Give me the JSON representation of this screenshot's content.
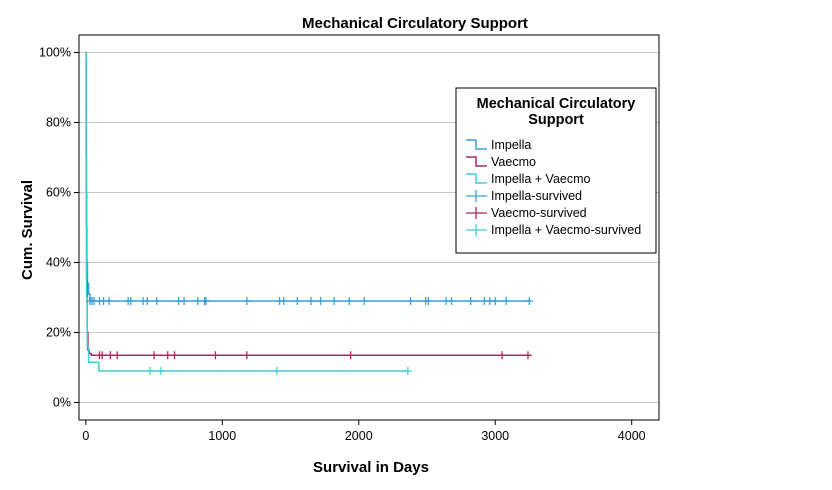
{
  "chart_data": {
    "type": "line",
    "subtype": "kaplan-meier",
    "title": "Mechanical Circulatory Support",
    "xlabel": "Survival in Days",
    "ylabel": "Cum. Survival",
    "xlim": [
      -50,
      4200
    ],
    "ylim": [
      -0.05,
      1.05
    ],
    "xticks": [
      0,
      1000,
      2000,
      3000,
      4000
    ],
    "xtick_labels": [
      "0",
      "1000",
      "2000",
      "3000",
      "4000"
    ],
    "yticks": [
      0,
      0.2,
      0.4,
      0.6,
      0.8,
      1.0
    ],
    "ytick_labels": [
      "0%",
      "20%",
      "40%",
      "60%",
      "80%",
      "100%"
    ],
    "grid": "horizontal",
    "legend_title": "Mechanical Circulatory Support",
    "legend_position": "right",
    "colors": {
      "impella": "#3a9fdd",
      "vaecmo": "#a8285f",
      "combo": "#3ecfd6"
    },
    "series": [
      {
        "name": "Impella",
        "color": "#3a9fdd",
        "steps": [
          [
            0,
            1.0
          ],
          [
            3,
            0.7
          ],
          [
            5,
            0.5
          ],
          [
            8,
            0.4
          ],
          [
            12,
            0.34
          ],
          [
            20,
            0.31
          ],
          [
            30,
            0.295
          ],
          [
            45,
            0.29
          ],
          [
            3250,
            0.29
          ]
        ]
      },
      {
        "name": "Vaecmo",
        "color": "#a8285f",
        "steps": [
          [
            0,
            1.0
          ],
          [
            3,
            0.6
          ],
          [
            6,
            0.35
          ],
          [
            10,
            0.2
          ],
          [
            15,
            0.15
          ],
          [
            25,
            0.14
          ],
          [
            40,
            0.135
          ],
          [
            3250,
            0.135
          ]
        ]
      },
      {
        "name": "Impella + Vaecmo",
        "color": "#3ecfd6",
        "steps": [
          [
            0,
            1.0
          ],
          [
            3,
            0.6
          ],
          [
            6,
            0.3
          ],
          [
            10,
            0.16
          ],
          [
            20,
            0.115
          ],
          [
            90,
            0.115
          ],
          [
            95,
            0.09
          ],
          [
            2360,
            0.09
          ]
        ]
      }
    ],
    "censored": [
      {
        "name": "Impella-survived",
        "color": "#3a9fdd",
        "y": 0.29,
        "x": [
          30,
          45,
          60,
          100,
          130,
          170,
          310,
          330,
          420,
          450,
          520,
          680,
          720,
          820,
          870,
          880,
          1180,
          1420,
          1450,
          1550,
          1650,
          1720,
          1820,
          1930,
          2040,
          2380,
          2490,
          2510,
          2640,
          2680,
          2820,
          2920,
          2960,
          3000,
          3080,
          3250
        ]
      },
      {
        "name": "Vaecmo-survived",
        "color": "#a8285f",
        "y": 0.135,
        "x": [
          100,
          120,
          180,
          230,
          500,
          600,
          650,
          950,
          1180,
          1940,
          3050,
          3240
        ]
      },
      {
        "name": "Impella + Vaecmo-survived",
        "color": "#3ecfd6",
        "y": 0.09,
        "x": [
          470,
          550,
          1400,
          2360
        ]
      }
    ]
  }
}
